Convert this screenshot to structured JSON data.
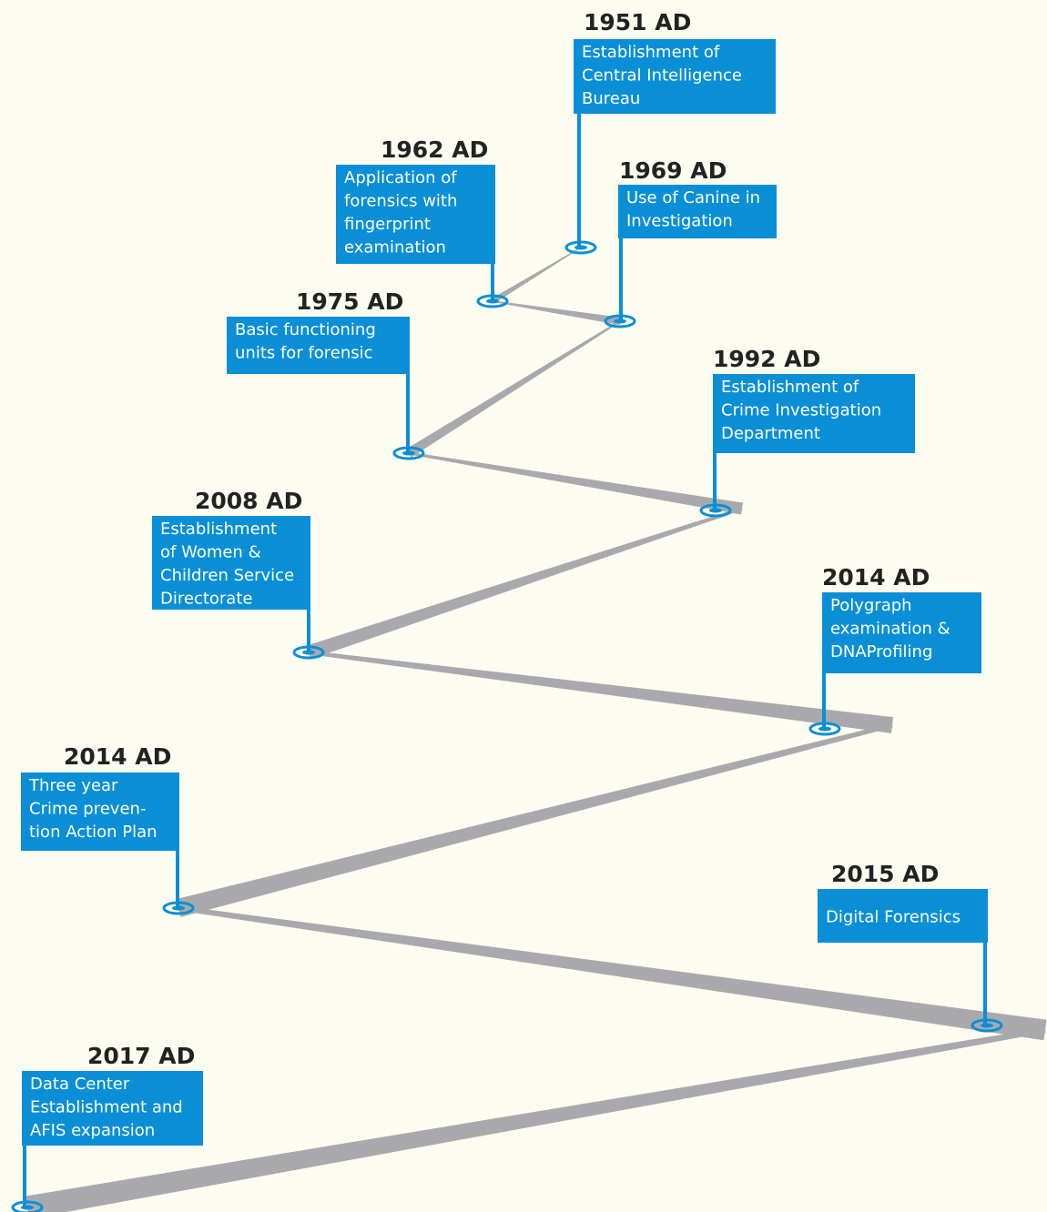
{
  "events": [
    {
      "year": "1951 AD",
      "lines": [
        "Establishment of",
        "Central Intelligence",
        "Bureau"
      ]
    },
    {
      "year": "1962 AD",
      "lines": [
        "Application of",
        "forensics with",
        "fingerprint",
        "examination"
      ]
    },
    {
      "year": "1969 AD",
      "lines": [
        "Use of Canine in",
        "Investigation"
      ]
    },
    {
      "year": "1975 AD",
      "lines": [
        "Basic functioning",
        "units for forensic"
      ]
    },
    {
      "year": "1992 AD",
      "lines": [
        "Establishment of",
        "Crime Investigation",
        "Department"
      ]
    },
    {
      "year": "2008 AD",
      "lines": [
        "Establishment",
        "of Women &",
        "Children Service",
        "Directorate"
      ]
    },
    {
      "year": "2014 AD",
      "lines": [
        "Polygraph",
        "examination &",
        "DNAProfiling"
      ]
    },
    {
      "year": "2014 AD",
      "lines": [
        "Three year",
        "Crime preven-",
        "tion Action Plan"
      ]
    },
    {
      "year": "2015 AD",
      "lines": [
        "Digital Forensics"
      ]
    },
    {
      "year": "2017 AD",
      "lines": [
        "Data Center",
        "Establishment and",
        "AFIS expansion"
      ]
    }
  ]
}
